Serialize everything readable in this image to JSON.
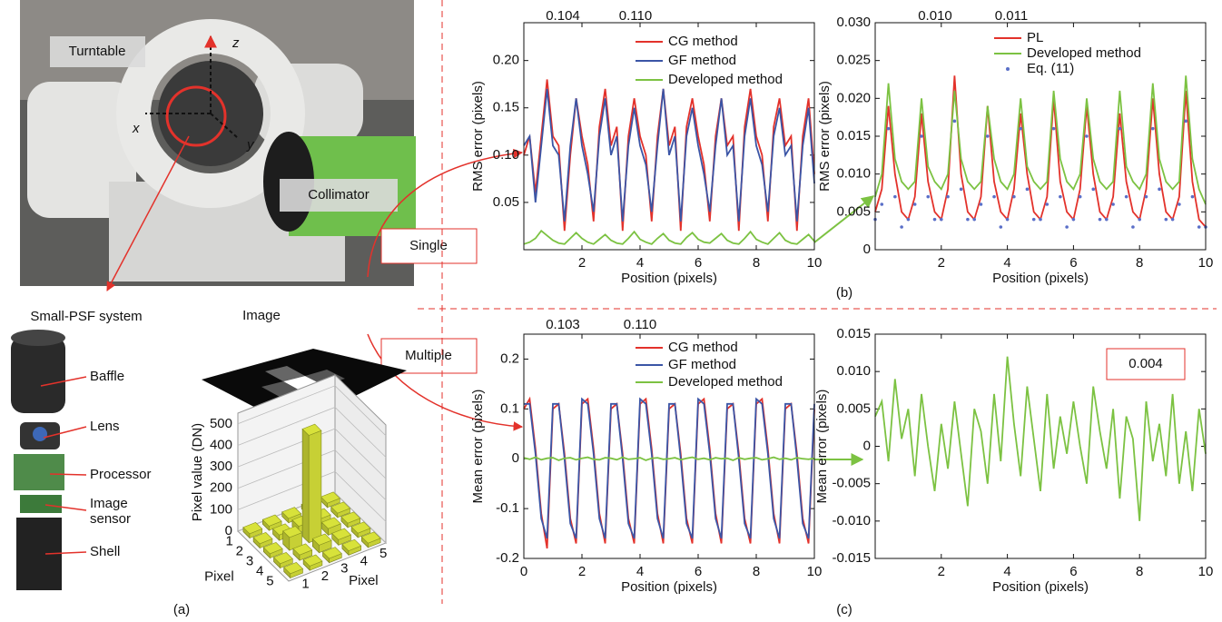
{
  "labels": {
    "turntable": "Turntable",
    "collimator": "Collimator",
    "axis_x": "x",
    "axis_y": "y",
    "axis_z": "z",
    "single": "Single",
    "multiple": "Multiple",
    "system": "Small-PSF system",
    "parts": [
      "Baffle",
      "Lens",
      "Processor",
      "Image sensor",
      "Shell"
    ],
    "image": "Image",
    "panels": [
      "(a)",
      "(b)",
      "(c)"
    ]
  },
  "chart_data": [
    {
      "type": "bar3d",
      "xlabel": "Pixel",
      "ylabel": "Pixel",
      "zlabel": "Pixel value (DN)",
      "xlim": [
        0.5,
        5.5
      ],
      "ylim": [
        0.5,
        5.5
      ],
      "xticks": [
        1,
        2,
        3,
        4,
        5
      ],
      "yticks": [
        1,
        2,
        3,
        4,
        5
      ],
      "zlim": [
        0,
        550
      ],
      "zticks": [
        0,
        100,
        200,
        300,
        400,
        500
      ],
      "color": "#d8e23a",
      "values": [
        [
          20,
          20,
          20,
          20,
          20
        ],
        [
          20,
          25,
          30,
          25,
          20
        ],
        [
          20,
          60,
          500,
          30,
          20
        ],
        [
          20,
          25,
          35,
          25,
          20
        ],
        [
          20,
          20,
          20,
          20,
          20
        ]
      ]
    },
    {
      "type": "line",
      "xlabel": "Position (pixels)",
      "ylabel": "RMS error (pixels)",
      "xlim": [
        0,
        10
      ],
      "ylim": [
        0,
        0.24
      ],
      "xticks": [
        2,
        4,
        6,
        8,
        10
      ],
      "yticks": [
        0.05,
        {
          "value": 0.1,
          "label": "0.10"
        },
        0.15,
        {
          "value": 0.2,
          "label": "0.20"
        }
      ],
      "annotations": [
        "0.104",
        "0.110"
      ],
      "x": [
        0,
        0.2,
        0.4,
        0.6,
        0.8,
        1,
        1.2,
        1.4,
        1.6,
        1.8,
        2,
        2.2,
        2.4,
        2.6,
        2.8,
        3,
        3.2,
        3.4,
        3.6,
        3.8,
        4,
        4.2,
        4.4,
        4.6,
        4.8,
        5,
        5.2,
        5.4,
        5.6,
        5.8,
        6,
        6.2,
        6.4,
        6.6,
        6.8,
        7,
        7.2,
        7.4,
        7.6,
        7.8,
        8,
        8.2,
        8.4,
        8.6,
        8.8,
        9,
        9.2,
        9.4,
        9.6,
        9.8,
        10
      ],
      "series": [
        {
          "name": "CG method",
          "color": "#e3322b",
          "values": [
            0.1,
            0.12,
            0.06,
            0.12,
            0.18,
            0.12,
            0.11,
            0.02,
            0.1,
            0.16,
            0.12,
            0.09,
            0.03,
            0.13,
            0.17,
            0.11,
            0.13,
            0.02,
            0.12,
            0.16,
            0.12,
            0.1,
            0.03,
            0.12,
            0.17,
            0.11,
            0.13,
            0.02,
            0.13,
            0.16,
            0.12,
            0.09,
            0.03,
            0.12,
            0.16,
            0.11,
            0.12,
            0.02,
            0.13,
            0.17,
            0.12,
            0.1,
            0.03,
            0.13,
            0.16,
            0.11,
            0.12,
            0.02,
            0.12,
            0.16,
            0.08
          ]
        },
        {
          "name": "GF method",
          "color": "#3b55a6",
          "values": [
            0.11,
            0.12,
            0.05,
            0.11,
            0.17,
            0.11,
            0.1,
            0.03,
            0.11,
            0.16,
            0.11,
            0.08,
            0.04,
            0.12,
            0.16,
            0.1,
            0.12,
            0.03,
            0.11,
            0.15,
            0.11,
            0.09,
            0.04,
            0.11,
            0.17,
            0.1,
            0.12,
            0.03,
            0.12,
            0.15,
            0.11,
            0.08,
            0.04,
            0.11,
            0.16,
            0.1,
            0.11,
            0.03,
            0.12,
            0.16,
            0.11,
            0.09,
            0.04,
            0.12,
            0.15,
            0.1,
            0.11,
            0.03,
            0.11,
            0.15,
            0.07
          ]
        },
        {
          "name": "Developed method",
          "color": "#7cc242",
          "values": [
            0.006,
            0.008,
            0.012,
            0.02,
            0.015,
            0.01,
            0.007,
            0.006,
            0.012,
            0.018,
            0.012,
            0.008,
            0.006,
            0.011,
            0.016,
            0.01,
            0.007,
            0.006,
            0.012,
            0.019,
            0.011,
            0.008,
            0.006,
            0.012,
            0.017,
            0.01,
            0.007,
            0.006,
            0.013,
            0.018,
            0.011,
            0.008,
            0.007,
            0.012,
            0.017,
            0.01,
            0.007,
            0.006,
            0.012,
            0.019,
            0.011,
            0.008,
            0.006,
            0.012,
            0.018,
            0.01,
            0.007,
            0.006,
            0.011,
            0.016,
            0.009
          ]
        }
      ]
    },
    {
      "type": "line",
      "xlabel": "Position (pixels)",
      "ylabel": "RMS error (pixels)",
      "xlim": [
        0,
        10
      ],
      "ylim": [
        0,
        0.03
      ],
      "xticks": [
        2,
        4,
        6,
        8,
        10
      ],
      "yticks": [
        0,
        0.005,
        {
          "value": 0.01,
          "label": "0.010"
        },
        0.015,
        {
          "value": 0.02,
          "label": "0.020"
        },
        0.025,
        {
          "value": 0.03,
          "label": "0.030"
        }
      ],
      "annotations": [
        "0.010",
        "0.011"
      ],
      "x": [
        0,
        0.2,
        0.4,
        0.6,
        0.8,
        1,
        1.2,
        1.4,
        1.6,
        1.8,
        2,
        2.2,
        2.4,
        2.6,
        2.8,
        3,
        3.2,
        3.4,
        3.6,
        3.8,
        4,
        4.2,
        4.4,
        4.6,
        4.8,
        5,
        5.2,
        5.4,
        5.6,
        5.8,
        6,
        6.2,
        6.4,
        6.6,
        6.8,
        7,
        7.2,
        7.4,
        7.6,
        7.8,
        8,
        8.2,
        8.4,
        8.6,
        8.8,
        9,
        9.2,
        9.4,
        9.6,
        9.8,
        10
      ],
      "series": [
        {
          "name": "PL",
          "color": "#e3322b",
          "values": [
            0.005,
            0.008,
            0.019,
            0.01,
            0.005,
            0.004,
            0.007,
            0.018,
            0.009,
            0.005,
            0.004,
            0.008,
            0.023,
            0.01,
            0.005,
            0.004,
            0.007,
            0.019,
            0.009,
            0.005,
            0.004,
            0.008,
            0.018,
            0.01,
            0.005,
            0.004,
            0.007,
            0.02,
            0.009,
            0.005,
            0.004,
            0.008,
            0.019,
            0.01,
            0.005,
            0.004,
            0.007,
            0.018,
            0.009,
            0.005,
            0.004,
            0.008,
            0.02,
            0.01,
            0.005,
            0.004,
            0.007,
            0.021,
            0.009,
            0.004,
            0.003
          ]
        },
        {
          "name": "Developed method",
          "color": "#7cc242",
          "values": [
            0.007,
            0.01,
            0.022,
            0.012,
            0.009,
            0.008,
            0.009,
            0.02,
            0.011,
            0.009,
            0.008,
            0.01,
            0.021,
            0.012,
            0.009,
            0.008,
            0.009,
            0.019,
            0.012,
            0.009,
            0.008,
            0.01,
            0.02,
            0.011,
            0.009,
            0.008,
            0.009,
            0.021,
            0.012,
            0.009,
            0.008,
            0.01,
            0.02,
            0.012,
            0.009,
            0.008,
            0.009,
            0.021,
            0.011,
            0.009,
            0.008,
            0.01,
            0.022,
            0.012,
            0.009,
            0.008,
            0.009,
            0.023,
            0.012,
            0.008,
            0.006
          ]
        },
        {
          "name": "Eq. (11)",
          "color": "#5a6fc8",
          "style": "dots",
          "values": [
            0.004,
            0.006,
            0.016,
            0.007,
            0.003,
            0.004,
            0.006,
            0.015,
            0.007,
            0.004,
            0.004,
            0.007,
            0.017,
            0.008,
            0.004,
            0.004,
            0.006,
            0.015,
            0.007,
            0.003,
            0.004,
            0.007,
            0.016,
            0.008,
            0.004,
            0.004,
            0.006,
            0.016,
            0.007,
            0.003,
            0.004,
            0.007,
            0.015,
            0.008,
            0.004,
            0.004,
            0.006,
            0.016,
            0.007,
            0.003,
            0.004,
            0.007,
            0.016,
            0.008,
            0.004,
            0.004,
            0.006,
            0.017,
            0.007,
            0.003,
            0.003
          ]
        }
      ]
    },
    {
      "type": "line",
      "xlabel": "Position (pixels)",
      "ylabel": "Mean error (pixels)",
      "xlim": [
        0,
        10
      ],
      "ylim": [
        -0.2,
        0.25
      ],
      "xticks": [
        0,
        2,
        4,
        6,
        8,
        10
      ],
      "yticks": [
        -0.2,
        -0.1,
        0,
        0.1,
        0.2
      ],
      "annotations": [
        "0.103",
        "0.110"
      ],
      "x": [
        0,
        0.2,
        0.4,
        0.6,
        0.8,
        1,
        1.2,
        1.4,
        1.6,
        1.8,
        2,
        2.2,
        2.4,
        2.6,
        2.8,
        3,
        3.2,
        3.4,
        3.6,
        3.8,
        4,
        4.2,
        4.4,
        4.6,
        4.8,
        5,
        5.2,
        5.4,
        5.6,
        5.8,
        6,
        6.2,
        6.4,
        6.6,
        6.8,
        7,
        7.2,
        7.4,
        7.6,
        7.8,
        8,
        8.2,
        8.4,
        8.6,
        8.8,
        9,
        9.2,
        9.4,
        9.6,
        9.8,
        10
      ],
      "series": [
        {
          "name": "CG method",
          "color": "#e3322b",
          "values": [
            0.1,
            0.12,
            0.02,
            -0.11,
            -0.18,
            0.1,
            0.11,
            0.01,
            -0.12,
            -0.17,
            0.11,
            0.12,
            0.02,
            -0.11,
            -0.17,
            0.1,
            0.11,
            0.01,
            -0.12,
            -0.17,
            0.11,
            0.12,
            0.02,
            -0.11,
            -0.17,
            0.1,
            0.11,
            0.01,
            -0.12,
            -0.17,
            0.11,
            0.12,
            0.02,
            -0.11,
            -0.17,
            0.1,
            0.11,
            0.01,
            -0.12,
            -0.17,
            0.11,
            0.12,
            0.02,
            -0.11,
            -0.17,
            0.1,
            0.11,
            0.01,
            -0.12,
            -0.17,
            0.1
          ]
        },
        {
          "name": "GF method",
          "color": "#3b55a6",
          "values": [
            0.11,
            0.11,
            0.01,
            -0.12,
            -0.16,
            0.11,
            0.11,
            0.0,
            -0.13,
            -0.16,
            0.12,
            0.11,
            0.01,
            -0.12,
            -0.16,
            0.11,
            0.11,
            0.0,
            -0.13,
            -0.16,
            0.12,
            0.11,
            0.01,
            -0.12,
            -0.16,
            0.11,
            0.11,
            0.0,
            -0.13,
            -0.16,
            0.12,
            0.11,
            0.01,
            -0.12,
            -0.16,
            0.11,
            0.11,
            0.0,
            -0.13,
            -0.16,
            0.12,
            0.11,
            0.01,
            -0.12,
            -0.16,
            0.11,
            0.11,
            0.0,
            -0.13,
            -0.16,
            0.11
          ]
        },
        {
          "name": "Developed method",
          "color": "#7cc242",
          "values": [
            0.002,
            -0.001,
            0.003,
            -0.002,
            0.001,
            0.002,
            -0.003,
            0.001,
            0.002,
            -0.002,
            0.001,
            0.003,
            -0.001,
            -0.002,
            0.002,
            0.001,
            -0.002,
            0.003,
            -0.001,
            0.0,
            0.002,
            -0.003,
            0.001,
            0.002,
            -0.001,
            0.0,
            0.002,
            -0.002,
            0.001,
            0.003,
            -0.001,
            0.001,
            -0.002,
            0.002,
            0.0,
            0.001,
            -0.003,
            0.002,
            -0.001,
            0.001,
            0.002,
            -0.002,
            0.0,
            0.003,
            -0.001,
            0.001,
            -0.002,
            0.002,
            0.0,
            -0.001,
            0.001
          ]
        }
      ]
    },
    {
      "type": "line",
      "ylabel": "Mean error (pixels)",
      "xlabel": "Position (pixels)",
      "xlim": [
        0,
        10
      ],
      "ylim": [
        -0.015,
        0.015
      ],
      "xticks": [
        2,
        4,
        6,
        8,
        10
      ],
      "yticks": [
        -0.015,
        {
          "value": -0.01,
          "label": "-0.010"
        },
        -0.005,
        0,
        0.005,
        {
          "value": 0.01,
          "label": "0.010"
        },
        0.015
      ],
      "annotations": [
        "0.004"
      ],
      "x": [
        0,
        0.2,
        0.4,
        0.6,
        0.8,
        1,
        1.2,
        1.4,
        1.6,
        1.8,
        2,
        2.2,
        2.4,
        2.6,
        2.8,
        3,
        3.2,
        3.4,
        3.6,
        3.8,
        4,
        4.2,
        4.4,
        4.6,
        4.8,
        5,
        5.2,
        5.4,
        5.6,
        5.8,
        6,
        6.2,
        6.4,
        6.6,
        6.8,
        7,
        7.2,
        7.4,
        7.6,
        7.8,
        8,
        8.2,
        8.4,
        8.6,
        8.8,
        9,
        9.2,
        9.4,
        9.6,
        9.8,
        10
      ],
      "series": [
        {
          "color": "#7cc242",
          "values": [
            0.004,
            0.006,
            -0.002,
            0.009,
            0.001,
            0.005,
            -0.004,
            0.007,
            0.0,
            -0.006,
            0.003,
            -0.003,
            0.006,
            -0.001,
            -0.008,
            0.005,
            0.002,
            -0.005,
            0.007,
            -0.002,
            0.012,
            0.003,
            -0.004,
            0.008,
            0.001,
            -0.006,
            0.007,
            -0.003,
            0.004,
            -0.001,
            0.006,
            0.0,
            -0.005,
            0.008,
            0.002,
            -0.003,
            0.005,
            -0.007,
            0.004,
            0.001,
            -0.01,
            0.006,
            -0.002,
            0.003,
            -0.004,
            0.007,
            -0.005,
            0.002,
            -0.006,
            0.005,
            -0.001
          ]
        }
      ]
    }
  ]
}
